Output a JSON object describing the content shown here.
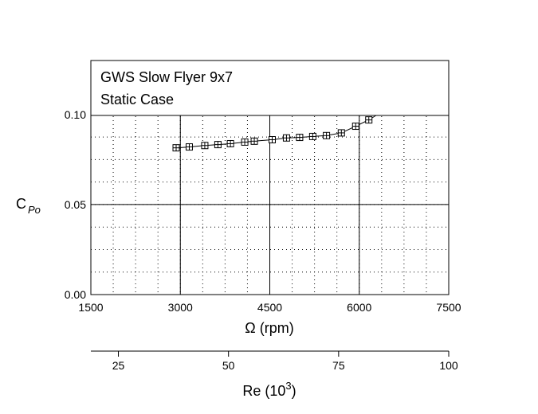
{
  "chart_data": {
    "type": "line",
    "legend_box": {
      "line1": "GWS Slow Flyer 9x7",
      "line2": "Static Case",
      "placement": "top"
    },
    "x_axis": {
      "label": "Ω (rpm)",
      "range": [
        1500,
        7500
      ],
      "ticks": [
        "1500",
        "3000",
        "4500",
        "6000",
        "7500"
      ],
      "tick_values": [
        1500,
        3000,
        4500,
        6000,
        7500
      ]
    },
    "secondary_x_axis": {
      "label_base": "Re (10",
      "label_sup": "3",
      "label_end": ")",
      "range": [
        18.75,
        100
      ],
      "ticks": [
        "25",
        "50",
        "75",
        "100"
      ],
      "tick_values": [
        25,
        50,
        75,
        100
      ]
    },
    "y_axis": {
      "label_main": "C",
      "label_sub": "Po",
      "range": [
        0,
        0.13
      ],
      "ticks": [
        "0.00",
        "0.05",
        "0.10"
      ],
      "tick_values": [
        0,
        0.05,
        0.1
      ]
    },
    "grid": "major solid, minor dotted",
    "series": [
      {
        "marker": "boxed-plus",
        "x": [
          2930,
          3150,
          3410,
          3630,
          3840,
          4080,
          4240,
          4540,
          4780,
          5000,
          5220,
          5450,
          5700,
          5940,
          6160,
          6330
        ],
        "y": [
          0.0815,
          0.082,
          0.0828,
          0.0833,
          0.0838,
          0.0847,
          0.0852,
          0.086,
          0.087,
          0.0873,
          0.0878,
          0.0883,
          0.0898,
          0.0935,
          0.097,
          0.1005
        ]
      }
    ]
  }
}
